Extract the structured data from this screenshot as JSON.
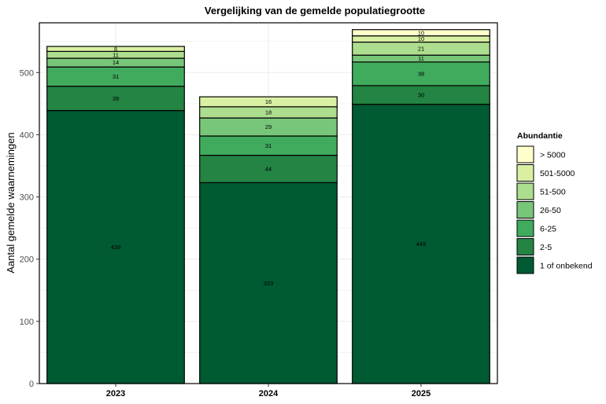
{
  "chart_data": {
    "type": "bar",
    "stacked": true,
    "title": "Vergelijking van de gemelde populatiegrootte",
    "xlabel": "",
    "ylabel": "Aantal gemelde waarnemingen",
    "categories": [
      "2023",
      "2024",
      "2025"
    ],
    "ylim": [
      0,
      580
    ],
    "yticks": [
      0,
      100,
      200,
      300,
      400,
      500
    ],
    "grid": true,
    "legend_title": "Abundantie",
    "legend_position": "right",
    "series": [
      {
        "name": "1 of onbekend",
        "color": "#005a32",
        "values": [
          439,
          323,
          449
        ]
      },
      {
        "name": "2-5",
        "color": "#238443",
        "values": [
          39,
          44,
          30
        ]
      },
      {
        "name": "6-25",
        "color": "#41ab5d",
        "values": [
          31,
          31,
          38
        ]
      },
      {
        "name": "26-50",
        "color": "#78c679",
        "values": [
          14,
          29,
          11
        ]
      },
      {
        "name": "51-500",
        "color": "#addd8e",
        "values": [
          11,
          18,
          21
        ]
      },
      {
        "name": "501-5000",
        "color": "#d9f0a3",
        "values": [
          8,
          16,
          10
        ]
      },
      {
        "name": "> 5000",
        "color": "#ffffcc",
        "values": [
          0,
          0,
          10
        ]
      }
    ],
    "legend_order": [
      "> 5000",
      "501-5000",
      "51-500",
      "26-50",
      "6-25",
      "2-5",
      "1 of onbekend"
    ]
  }
}
